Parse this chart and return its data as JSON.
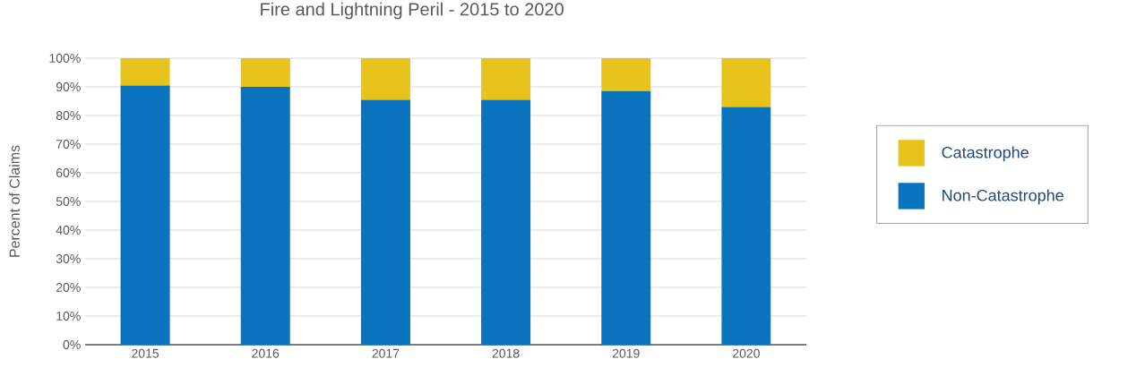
{
  "chart_data": {
    "type": "bar",
    "title": "Fire and Lightning Peril - 2015 to 2020",
    "ylabel": "Percent of Claims",
    "categories": [
      "2015",
      "2016",
      "2017",
      "2018",
      "2019",
      "2020"
    ],
    "stacked": true,
    "series": [
      {
        "name": "Non-Catastrophe",
        "color": "#0a73bd",
        "values": [
          90.5,
          90,
          85.5,
          85.5,
          88.5,
          83
        ]
      },
      {
        "name": "Catastrophe",
        "color": "#e8c31b",
        "values": [
          9.5,
          10,
          14.5,
          14.5,
          11.5,
          17
        ]
      }
    ],
    "ylim": [
      0,
      100
    ],
    "yticks": [
      {
        "value": 0,
        "label": "0%"
      },
      {
        "value": 10,
        "label": "10%"
      },
      {
        "value": 20,
        "label": "20%"
      },
      {
        "value": 30,
        "label": "30%"
      },
      {
        "value": 40,
        "label": "40%"
      },
      {
        "value": 50,
        "label": "50%"
      },
      {
        "value": 60,
        "label": "60%"
      },
      {
        "value": 70,
        "label": "70%"
      },
      {
        "value": 80,
        "label": "80%"
      },
      {
        "value": 90,
        "label": "90%"
      },
      {
        "value": 100,
        "label": "100%"
      }
    ],
    "grid": "y",
    "legend": "right"
  }
}
